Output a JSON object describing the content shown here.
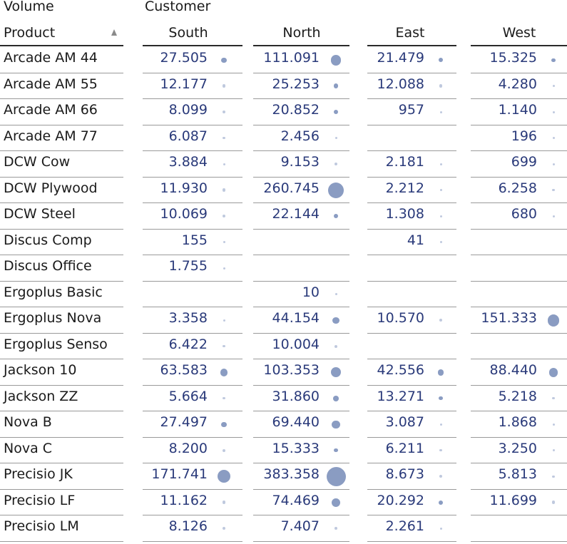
{
  "header": {
    "measure_label": "Volume",
    "dimension_label": "Customer",
    "row_header": "Product",
    "sort_indicator": "ascending-triangle-icon"
  },
  "colors": {
    "value_text": "#2a3a7a",
    "bubble": "#8a9cc2",
    "rule": "#9a9a9a"
  },
  "chart_data": {
    "type": "table",
    "columns": [
      "South",
      "North",
      "East",
      "West"
    ],
    "rows": [
      {
        "product": "Arcade AM 44",
        "values": [
          "27.505",
          "111.091",
          "21.479",
          "15.325"
        ]
      },
      {
        "product": "Arcade AM 55",
        "values": [
          "12.177",
          "25.253",
          "12.088",
          "4.280"
        ]
      },
      {
        "product": "Arcade AM 66",
        "values": [
          "8.099",
          "20.852",
          "957",
          "1.140"
        ]
      },
      {
        "product": "Arcade AM 77",
        "values": [
          "6.087",
          "2.456",
          "",
          "196"
        ]
      },
      {
        "product": "DCW Cow",
        "values": [
          "3.884",
          "9.153",
          "2.181",
          "699"
        ]
      },
      {
        "product": "DCW Plywood",
        "values": [
          "11.930",
          "260.745",
          "2.212",
          "6.258"
        ]
      },
      {
        "product": "DCW Steel",
        "values": [
          "10.069",
          "22.144",
          "1.308",
          "680"
        ]
      },
      {
        "product": "Discus Comp",
        "values": [
          "155",
          "",
          "41",
          ""
        ]
      },
      {
        "product": "Discus Office",
        "values": [
          "1.755",
          "",
          "",
          ""
        ]
      },
      {
        "product": "Ergoplus Basic",
        "values": [
          "",
          "10",
          "",
          ""
        ]
      },
      {
        "product": "Ergoplus Nova",
        "values": [
          "3.358",
          "44.154",
          "10.570",
          "151.333"
        ]
      },
      {
        "product": "Ergoplus Senso",
        "values": [
          "6.422",
          "10.004",
          "",
          ""
        ]
      },
      {
        "product": "Jackson 10",
        "values": [
          "63.583",
          "103.353",
          "42.556",
          "88.440"
        ]
      },
      {
        "product": "Jackson ZZ",
        "values": [
          "5.664",
          "31.860",
          "13.271",
          "5.218"
        ]
      },
      {
        "product": "Nova B",
        "values": [
          "27.497",
          "69.440",
          "3.087",
          "1.868"
        ]
      },
      {
        "product": "Nova C",
        "values": [
          "8.200",
          "15.333",
          "6.211",
          "3.250"
        ]
      },
      {
        "product": "Precisio JK",
        "values": [
          "171.741",
          "383.358",
          "8.673",
          "5.813"
        ]
      },
      {
        "product": "Precisio LF",
        "values": [
          "11.162",
          "74.469",
          "20.292",
          "11.699"
        ]
      },
      {
        "product": "Precisio LM",
        "values": [
          "8.126",
          "7.407",
          "2.261",
          ""
        ]
      }
    ],
    "max_value": 383358
  }
}
